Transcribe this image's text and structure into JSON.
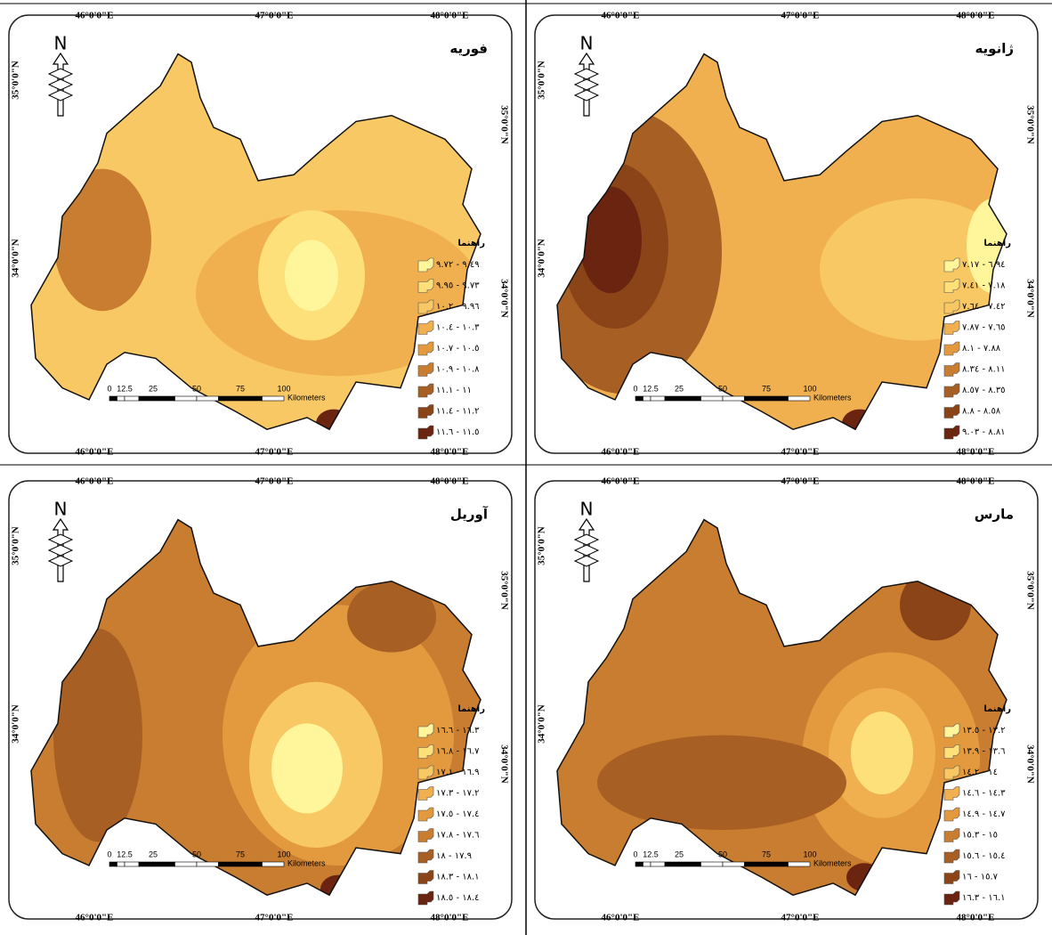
{
  "panels": [
    {
      "title": "فوریه",
      "north": "N",
      "legend_title": "راهنما",
      "legend": [
        "٩.٤٩ - ٩.٧٢",
        "٩.٧٣ - ٩.٩٥",
        "٩.٩٦ - ١٠.٢",
        "١٠.٣ - ١٠.٤",
        "١٠.٥ - ١٠.٧",
        "١٠.٨ - ١٠.٩",
        "١١ - ١١.١",
        "١١.٢ - ١١.٤",
        "١١.٥ - ١١.٦"
      ],
      "scale_ticks": [
        "0",
        "12.5",
        "25",
        "50",
        "75",
        "100"
      ],
      "scale_unit": "Kilometers",
      "lon_labels": [
        "46°0'0\"E",
        "47°0'0\"E",
        "48°0'0\"E"
      ],
      "lat_labels": [
        "35°0'0\"N",
        "34°0'0\"N"
      ]
    },
    {
      "title": "ژانویه",
      "north": "N",
      "legend_title": "راهنما",
      "legend": [
        "٦.٩٤ - ٧.١٧",
        "٧.١٨ - ٧.٤١",
        "٧.٤٢ - ٧.٦٤",
        "٧.٦٥ - ٧.٨٧",
        "٧.٨٨ - ٨.١",
        "٨.١١ - ٨.٣٤",
        "٨.٣٥ - ٨.٥٧",
        "٨.٥٨ - ٨.٨",
        "٨.٨١ - ٩.٠٣"
      ],
      "scale_ticks": [
        "0",
        "12.5",
        "25",
        "50",
        "75",
        "100"
      ],
      "scale_unit": "Kilometers",
      "lon_labels": [
        "46°0'0\"E",
        "47°0'0\"E",
        "48°0'0\"E"
      ],
      "lat_labels": [
        "35°0'0\"N",
        "34°0'0\"N"
      ]
    },
    {
      "title": "آوریل",
      "north": "N",
      "legend_title": "راهنما",
      "legend": [
        "١٦.٣ - ١٦.٦",
        "١٦.٧ - ١٦.٨",
        "١٦.٩ - ١٧.١",
        "١٧.٢ - ١٧.٣",
        "١٧.٤ - ١٧.٥",
        "١٧.٦ - ١٧.٨",
        "١٧.٩ - ١٨",
        "١٨.١ - ١٨.٣",
        "١٨.٤ - ١٨.٥"
      ],
      "scale_ticks": [
        "0",
        "12.5",
        "25",
        "50",
        "75",
        "100"
      ],
      "scale_unit": "Kilometers",
      "lon_labels": [
        "46°0'0\"E",
        "47°0'0\"E",
        "48°0'0\"E"
      ],
      "lat_labels": [
        "35°0'0\"N",
        "34°0'0\"N"
      ]
    },
    {
      "title": "مارس",
      "north": "N",
      "legend_title": "راهنما",
      "legend": [
        "١٣.٢ - ١٣.٥",
        "١٣.٦ - ١٣.٩",
        "١٤ - ١٤.٢",
        "١٤.٣ - ١٤.٦",
        "١٤.٧ - ١٤.٩",
        "١٥ - ١٥.٣",
        "١٥.٤ - ١٥.٦",
        "١٥.٧ - ١٦",
        "١٦.١ - ١٦.٣"
      ],
      "scale_ticks": [
        "0",
        "12.5",
        "25",
        "50",
        "75",
        "100"
      ],
      "scale_unit": "Kilometers",
      "lon_labels": [
        "46°0'0\"E",
        "47°0'0\"E",
        "48°0'0\"E"
      ],
      "lat_labels": [
        "35°0'0\"N",
        "34°0'0\"N"
      ]
    }
  ]
}
